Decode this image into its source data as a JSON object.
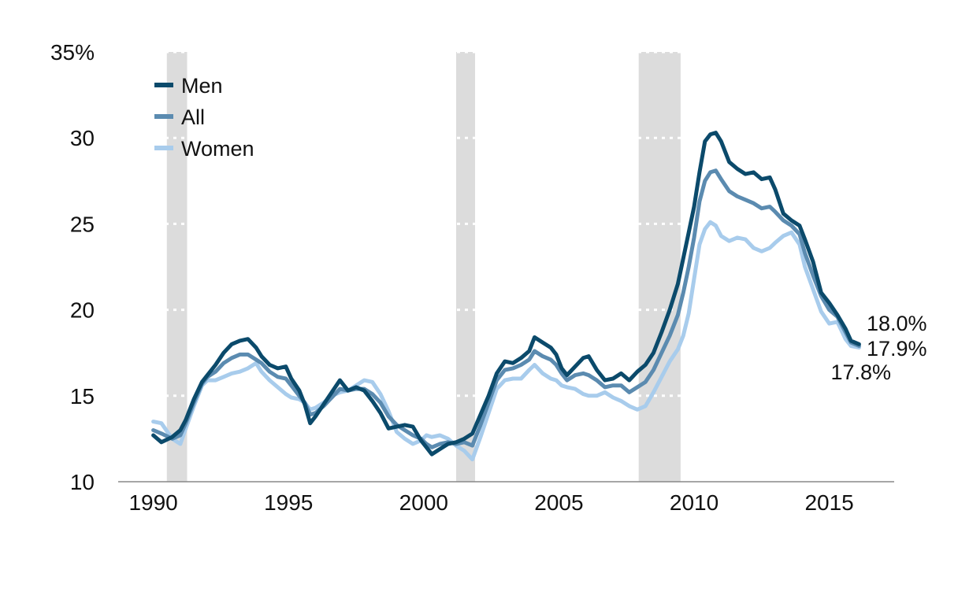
{
  "chart_data": {
    "type": "line",
    "title": "",
    "xlabel": "",
    "ylabel": "",
    "xlim": [
      1988.7,
      2017.4
    ],
    "ylim": [
      10,
      35
    ],
    "y_ticks": [
      {
        "value": 10,
        "label": "10"
      },
      {
        "value": 15,
        "label": "15"
      },
      {
        "value": 20,
        "label": "20"
      },
      {
        "value": 25,
        "label": "25"
      },
      {
        "value": 30,
        "label": "30"
      },
      {
        "value": 35,
        "label": "35%"
      }
    ],
    "x_ticks": [
      {
        "value": 1990,
        "label": "1990"
      },
      {
        "value": 1995,
        "label": "1995"
      },
      {
        "value": 2000,
        "label": "2000"
      },
      {
        "value": 2005,
        "label": "2005"
      },
      {
        "value": 2010,
        "label": "2010"
      },
      {
        "value": 2015,
        "label": "2015"
      }
    ],
    "grid": "horizontal dotted",
    "legend_position": "top-left",
    "recession_shading": [
      [
        1990.5,
        1991.25
      ],
      [
        2001.2,
        2001.9
      ],
      [
        2007.95,
        2009.5
      ]
    ],
    "series": [
      {
        "name": "Men",
        "color": "#0b4a6b",
        "points": [
          [
            1990.0,
            12.7
          ],
          [
            1990.3,
            12.3
          ],
          [
            1990.7,
            12.6
          ],
          [
            1991.0,
            13.0
          ],
          [
            1991.2,
            13.6
          ],
          [
            1991.5,
            14.8
          ],
          [
            1991.8,
            15.8
          ],
          [
            1992.0,
            16.2
          ],
          [
            1992.3,
            16.8
          ],
          [
            1992.6,
            17.5
          ],
          [
            1992.9,
            18.0
          ],
          [
            1993.2,
            18.2
          ],
          [
            1993.5,
            18.3
          ],
          [
            1993.8,
            17.8
          ],
          [
            1994.0,
            17.3
          ],
          [
            1994.3,
            16.8
          ],
          [
            1994.6,
            16.6
          ],
          [
            1994.9,
            16.7
          ],
          [
            1995.1,
            16.0
          ],
          [
            1995.4,
            15.3
          ],
          [
            1995.6,
            14.5
          ],
          [
            1995.8,
            13.4
          ],
          [
            1996.0,
            13.8
          ],
          [
            1996.3,
            14.5
          ],
          [
            1996.6,
            15.2
          ],
          [
            1996.9,
            15.9
          ],
          [
            1997.2,
            15.3
          ],
          [
            1997.5,
            15.5
          ],
          [
            1997.8,
            15.3
          ],
          [
            1998.1,
            14.7
          ],
          [
            1998.4,
            14.0
          ],
          [
            1998.7,
            13.1
          ],
          [
            1999.0,
            13.2
          ],
          [
            1999.3,
            13.3
          ],
          [
            1999.6,
            13.2
          ],
          [
            1999.9,
            12.4
          ],
          [
            2000.1,
            12.0
          ],
          [
            2000.3,
            11.6
          ],
          [
            2000.6,
            11.9
          ],
          [
            2000.9,
            12.2
          ],
          [
            2001.2,
            12.3
          ],
          [
            2001.5,
            12.5
          ],
          [
            2001.8,
            12.8
          ],
          [
            2002.1,
            13.9
          ],
          [
            2002.4,
            15.0
          ],
          [
            2002.7,
            16.3
          ],
          [
            2003.0,
            17.0
          ],
          [
            2003.3,
            16.9
          ],
          [
            2003.6,
            17.2
          ],
          [
            2003.9,
            17.6
          ],
          [
            2004.1,
            18.4
          ],
          [
            2004.4,
            18.1
          ],
          [
            2004.7,
            17.8
          ],
          [
            2004.9,
            17.4
          ],
          [
            2005.1,
            16.6
          ],
          [
            2005.3,
            16.2
          ],
          [
            2005.6,
            16.7
          ],
          [
            2005.9,
            17.2
          ],
          [
            2006.1,
            17.3
          ],
          [
            2006.4,
            16.5
          ],
          [
            2006.7,
            15.9
          ],
          [
            2007.0,
            16.0
          ],
          [
            2007.3,
            16.3
          ],
          [
            2007.6,
            15.9
          ],
          [
            2007.9,
            16.4
          ],
          [
            2008.2,
            16.8
          ],
          [
            2008.5,
            17.5
          ],
          [
            2008.8,
            18.7
          ],
          [
            2009.1,
            20.0
          ],
          [
            2009.4,
            21.5
          ],
          [
            2009.6,
            23.0
          ],
          [
            2009.8,
            24.5
          ],
          [
            2010.0,
            26.0
          ],
          [
            2010.2,
            28.0
          ],
          [
            2010.4,
            29.8
          ],
          [
            2010.6,
            30.2
          ],
          [
            2010.8,
            30.3
          ],
          [
            2011.0,
            29.8
          ],
          [
            2011.3,
            28.6
          ],
          [
            2011.6,
            28.2
          ],
          [
            2011.9,
            27.9
          ],
          [
            2012.2,
            28.0
          ],
          [
            2012.5,
            27.6
          ],
          [
            2012.8,
            27.7
          ],
          [
            2013.0,
            27.0
          ],
          [
            2013.3,
            25.6
          ],
          [
            2013.6,
            25.2
          ],
          [
            2013.9,
            24.9
          ],
          [
            2014.1,
            24.1
          ],
          [
            2014.4,
            22.8
          ],
          [
            2014.7,
            21.0
          ],
          [
            2015.0,
            20.4
          ],
          [
            2015.3,
            19.7
          ],
          [
            2015.6,
            18.9
          ],
          [
            2015.8,
            18.2
          ],
          [
            2016.1,
            18.0
          ]
        ],
        "end_label": "18.0%"
      },
      {
        "name": "All",
        "color": "#5b8bb0",
        "points": [
          [
            1990.0,
            13.0
          ],
          [
            1990.3,
            12.8
          ],
          [
            1990.7,
            12.5
          ],
          [
            1991.0,
            12.7
          ],
          [
            1991.2,
            13.4
          ],
          [
            1991.5,
            14.6
          ],
          [
            1991.8,
            15.7
          ],
          [
            1992.0,
            16.1
          ],
          [
            1992.3,
            16.4
          ],
          [
            1992.6,
            16.9
          ],
          [
            1992.9,
            17.2
          ],
          [
            1993.2,
            17.4
          ],
          [
            1993.5,
            17.4
          ],
          [
            1993.8,
            17.1
          ],
          [
            1994.0,
            16.9
          ],
          [
            1994.3,
            16.4
          ],
          [
            1994.6,
            16.1
          ],
          [
            1994.9,
            16.0
          ],
          [
            1995.1,
            15.6
          ],
          [
            1995.4,
            15.0
          ],
          [
            1995.6,
            14.6
          ],
          [
            1995.8,
            13.9
          ],
          [
            1996.0,
            14.0
          ],
          [
            1996.3,
            14.4
          ],
          [
            1996.6,
            14.9
          ],
          [
            1996.9,
            15.4
          ],
          [
            1997.2,
            15.3
          ],
          [
            1997.5,
            15.4
          ],
          [
            1997.8,
            15.4
          ],
          [
            1998.1,
            15.1
          ],
          [
            1998.4,
            14.6
          ],
          [
            1998.7,
            13.8
          ],
          [
            1999.0,
            13.3
          ],
          [
            1999.3,
            13.0
          ],
          [
            1999.6,
            12.7
          ],
          [
            1999.9,
            12.5
          ],
          [
            2000.1,
            12.2
          ],
          [
            2000.3,
            12.0
          ],
          [
            2000.6,
            12.2
          ],
          [
            2000.9,
            12.3
          ],
          [
            2001.2,
            12.2
          ],
          [
            2001.5,
            12.3
          ],
          [
            2001.8,
            12.1
          ],
          [
            2002.1,
            13.3
          ],
          [
            2002.4,
            14.6
          ],
          [
            2002.7,
            15.9
          ],
          [
            2003.0,
            16.5
          ],
          [
            2003.3,
            16.6
          ],
          [
            2003.6,
            16.8
          ],
          [
            2003.9,
            17.1
          ],
          [
            2004.1,
            17.6
          ],
          [
            2004.4,
            17.3
          ],
          [
            2004.7,
            17.1
          ],
          [
            2004.9,
            16.8
          ],
          [
            2005.1,
            16.3
          ],
          [
            2005.3,
            15.9
          ],
          [
            2005.6,
            16.2
          ],
          [
            2005.9,
            16.3
          ],
          [
            2006.1,
            16.2
          ],
          [
            2006.4,
            15.9
          ],
          [
            2006.7,
            15.5
          ],
          [
            2007.0,
            15.6
          ],
          [
            2007.3,
            15.6
          ],
          [
            2007.6,
            15.2
          ],
          [
            2007.9,
            15.5
          ],
          [
            2008.2,
            15.8
          ],
          [
            2008.5,
            16.5
          ],
          [
            2008.8,
            17.5
          ],
          [
            2009.1,
            18.5
          ],
          [
            2009.4,
            19.7
          ],
          [
            2009.6,
            21.0
          ],
          [
            2009.8,
            22.5
          ],
          [
            2010.0,
            24.2
          ],
          [
            2010.2,
            26.3
          ],
          [
            2010.4,
            27.5
          ],
          [
            2010.6,
            28.0
          ],
          [
            2010.8,
            28.1
          ],
          [
            2011.0,
            27.6
          ],
          [
            2011.3,
            26.9
          ],
          [
            2011.6,
            26.6
          ],
          [
            2011.9,
            26.4
          ],
          [
            2012.2,
            26.2
          ],
          [
            2012.5,
            25.9
          ],
          [
            2012.8,
            26.0
          ],
          [
            2013.0,
            25.7
          ],
          [
            2013.3,
            25.2
          ],
          [
            2013.6,
            24.9
          ],
          [
            2013.9,
            24.4
          ],
          [
            2014.1,
            23.3
          ],
          [
            2014.4,
            22.0
          ],
          [
            2014.7,
            20.8
          ],
          [
            2015.0,
            20.0
          ],
          [
            2015.3,
            19.6
          ],
          [
            2015.6,
            18.7
          ],
          [
            2015.8,
            18.1
          ],
          [
            2016.1,
            17.9
          ]
        ],
        "end_label": "17.9%"
      },
      {
        "name": "Women",
        "color": "#a8ccec",
        "points": [
          [
            1990.0,
            13.5
          ],
          [
            1990.3,
            13.4
          ],
          [
            1990.7,
            12.5
          ],
          [
            1991.0,
            12.2
          ],
          [
            1991.2,
            13.1
          ],
          [
            1991.5,
            14.4
          ],
          [
            1991.8,
            15.6
          ],
          [
            1992.0,
            15.9
          ],
          [
            1992.3,
            15.9
          ],
          [
            1992.6,
            16.1
          ],
          [
            1992.9,
            16.3
          ],
          [
            1993.2,
            16.4
          ],
          [
            1993.5,
            16.6
          ],
          [
            1993.8,
            16.9
          ],
          [
            1994.0,
            16.4
          ],
          [
            1994.3,
            15.9
          ],
          [
            1994.6,
            15.5
          ],
          [
            1994.9,
            15.1
          ],
          [
            1995.1,
            14.9
          ],
          [
            1995.4,
            14.8
          ],
          [
            1995.6,
            14.6
          ],
          [
            1995.8,
            14.2
          ],
          [
            1996.0,
            14.3
          ],
          [
            1996.3,
            14.6
          ],
          [
            1996.6,
            15.0
          ],
          [
            1996.9,
            15.2
          ],
          [
            1997.2,
            15.3
          ],
          [
            1997.5,
            15.6
          ],
          [
            1997.8,
            15.9
          ],
          [
            1998.1,
            15.8
          ],
          [
            1998.4,
            15.1
          ],
          [
            1998.7,
            14.1
          ],
          [
            1999.0,
            12.9
          ],
          [
            1999.3,
            12.5
          ],
          [
            1999.6,
            12.2
          ],
          [
            1999.9,
            12.4
          ],
          [
            2000.1,
            12.7
          ],
          [
            2000.3,
            12.6
          ],
          [
            2000.6,
            12.7
          ],
          [
            2000.9,
            12.5
          ],
          [
            2001.2,
            12.1
          ],
          [
            2001.5,
            11.8
          ],
          [
            2001.8,
            11.3
          ],
          [
            2002.1,
            12.6
          ],
          [
            2002.4,
            14.0
          ],
          [
            2002.7,
            15.4
          ],
          [
            2003.0,
            15.9
          ],
          [
            2003.3,
            16.0
          ],
          [
            2003.6,
            16.0
          ],
          [
            2003.9,
            16.5
          ],
          [
            2004.1,
            16.8
          ],
          [
            2004.4,
            16.3
          ],
          [
            2004.7,
            16.0
          ],
          [
            2004.9,
            15.9
          ],
          [
            2005.1,
            15.6
          ],
          [
            2005.3,
            15.5
          ],
          [
            2005.6,
            15.4
          ],
          [
            2005.9,
            15.1
          ],
          [
            2006.1,
            15.0
          ],
          [
            2006.4,
            15.0
          ],
          [
            2006.7,
            15.2
          ],
          [
            2007.0,
            14.9
          ],
          [
            2007.3,
            14.7
          ],
          [
            2007.6,
            14.4
          ],
          [
            2007.9,
            14.2
          ],
          [
            2008.2,
            14.4
          ],
          [
            2008.5,
            15.2
          ],
          [
            2008.8,
            16.1
          ],
          [
            2009.1,
            17.0
          ],
          [
            2009.4,
            17.7
          ],
          [
            2009.6,
            18.5
          ],
          [
            2009.8,
            19.8
          ],
          [
            2010.0,
            21.8
          ],
          [
            2010.2,
            23.8
          ],
          [
            2010.4,
            24.7
          ],
          [
            2010.6,
            25.1
          ],
          [
            2010.8,
            24.9
          ],
          [
            2011.0,
            24.3
          ],
          [
            2011.3,
            24.0
          ],
          [
            2011.6,
            24.2
          ],
          [
            2011.9,
            24.1
          ],
          [
            2012.2,
            23.6
          ],
          [
            2012.5,
            23.4
          ],
          [
            2012.8,
            23.6
          ],
          [
            2013.0,
            23.9
          ],
          [
            2013.3,
            24.3
          ],
          [
            2013.6,
            24.5
          ],
          [
            2013.9,
            23.8
          ],
          [
            2014.1,
            22.5
          ],
          [
            2014.4,
            21.2
          ],
          [
            2014.7,
            19.9
          ],
          [
            2015.0,
            19.2
          ],
          [
            2015.3,
            19.3
          ],
          [
            2015.6,
            18.3
          ],
          [
            2015.8,
            17.9
          ],
          [
            2016.1,
            17.8
          ]
        ],
        "end_label": "17.8%"
      }
    ]
  }
}
